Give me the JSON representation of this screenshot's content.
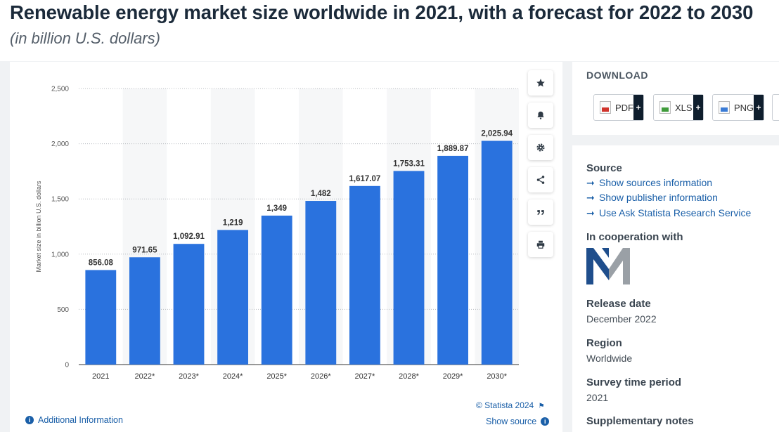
{
  "header": {
    "title": "Renewable energy market size worldwide in 2021, with a forecast for 2022 to 2030",
    "subtitle": "(in billion U.S. dollars)"
  },
  "chart_data": {
    "type": "bar",
    "categories": [
      "2021",
      "2022*",
      "2023*",
      "2024*",
      "2025*",
      "2026*",
      "2027*",
      "2028*",
      "2029*",
      "2030*"
    ],
    "values": [
      856.08,
      971.65,
      1092.91,
      1219,
      1349,
      1482,
      1617.07,
      1753.31,
      1889.87,
      2025.94
    ],
    "value_labels": [
      "856.08",
      "971.65",
      "1,092.91",
      "1,219",
      "1,349",
      "1,482",
      "1,617.07",
      "1,753.31",
      "1,889.87",
      "2,025.94"
    ],
    "ylabel": "Market size in billion U.S. dollars",
    "ylim": [
      0,
      2500
    ],
    "yticks": [
      0,
      500,
      1000,
      1500,
      2000,
      2500
    ],
    "ytick_labels": [
      "0",
      "500",
      "1,000",
      "1,500",
      "2,000",
      "2,500"
    ],
    "grid": true,
    "bar_color": "#2a72de"
  },
  "chart_footer": {
    "copyright": "© Statista 2024",
    "additional_info": "Additional Information",
    "show_source": "Show source"
  },
  "tools": [
    {
      "name": "favorite-button",
      "icon": "star-icon"
    },
    {
      "name": "notification-button",
      "icon": "bell-icon"
    },
    {
      "name": "settings-button",
      "icon": "gear-icon"
    },
    {
      "name": "share-button",
      "icon": "share-icon"
    },
    {
      "name": "cite-button",
      "icon": "quote-icon"
    },
    {
      "name": "print-button",
      "icon": "print-icon"
    }
  ],
  "download": {
    "title": "DOWNLOAD",
    "pdf": "PDF",
    "xls": "XLS",
    "png": "PNG",
    "plus": "+"
  },
  "info": {
    "source_heading": "Source",
    "links": [
      "Show sources information",
      "Show publisher information",
      "Use Ask Statista Research Service"
    ],
    "cooperation_heading": "In cooperation with",
    "release_heading": "Release date",
    "release_value": "December 2022",
    "region_heading": "Region",
    "region_value": "Worldwide",
    "survey_heading": "Survey time period",
    "survey_value": "2021",
    "supplementary_heading": "Supplementary notes"
  }
}
